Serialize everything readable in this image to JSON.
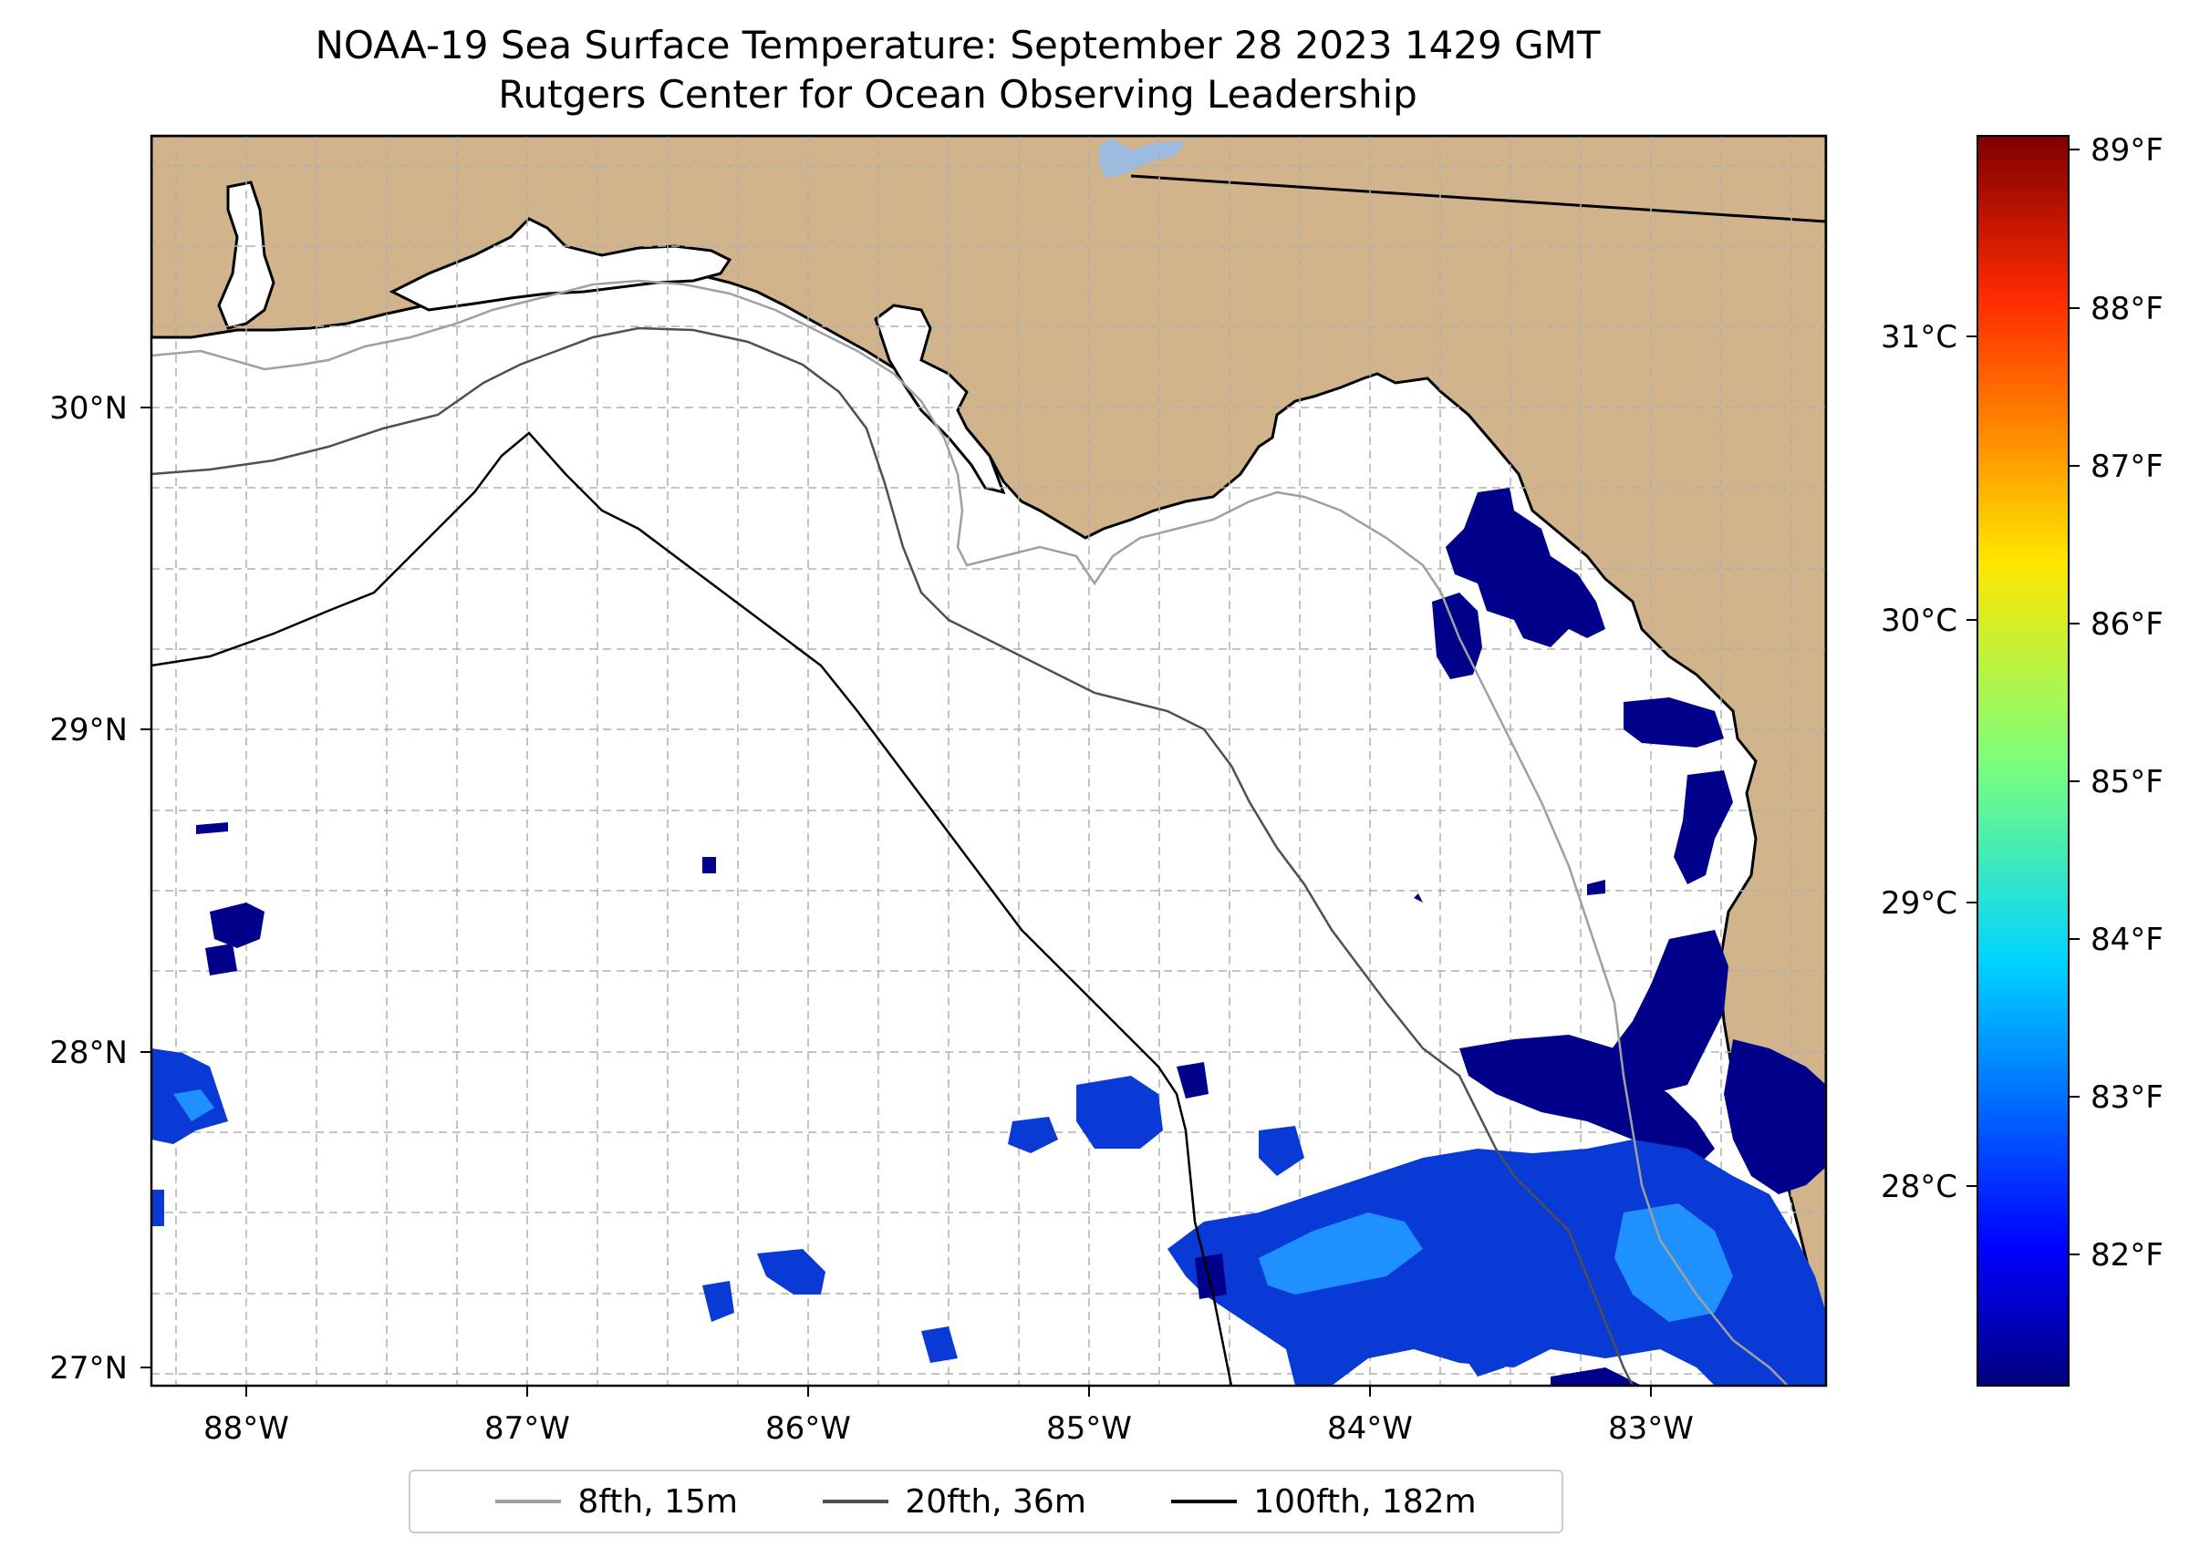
{
  "title": "NOAA-19 Sea Surface Temperature: September 28 2023 1429 GMT",
  "subtitle": "Rutgers Center for Ocean Observing Leadership",
  "colors": {
    "land": "#d2b48c",
    "ocean_bg": "#ffffff",
    "grid": "#b0b0b0",
    "lake": "#9bbbe0",
    "sst_deep": "#00008b",
    "sst_mid": "#0a3ad6",
    "sst_light": "#1e90ff"
  },
  "map": {
    "lon_ticks": [
      "88°W",
      "87°W",
      "86°W",
      "85°W",
      "84°W",
      "83°W"
    ],
    "lat_ticks": [
      "30°N",
      "29°N",
      "28°N",
      "27°N"
    ],
    "lon_range": [
      -88.33,
      -82.4
    ],
    "lat_range": [
      26.95,
      30.85
    ]
  },
  "colorbar": {
    "celsius_ticks": [
      "31°C",
      "30°C",
      "29°C",
      "28°C"
    ],
    "fahrenheit_ticks": [
      "89°F",
      "88°F",
      "87°F",
      "86°F",
      "85°F",
      "84°F",
      "83°F",
      "82°F"
    ],
    "colormap": "jet",
    "range_F": [
      81.2,
      89.1
    ]
  },
  "legend": [
    {
      "label": "8fth, 15m",
      "color": "#a0a0a0"
    },
    {
      "label": "20fth, 36m",
      "color": "#505050"
    },
    {
      "label": "100fth, 182m",
      "color": "#000000"
    }
  ]
}
